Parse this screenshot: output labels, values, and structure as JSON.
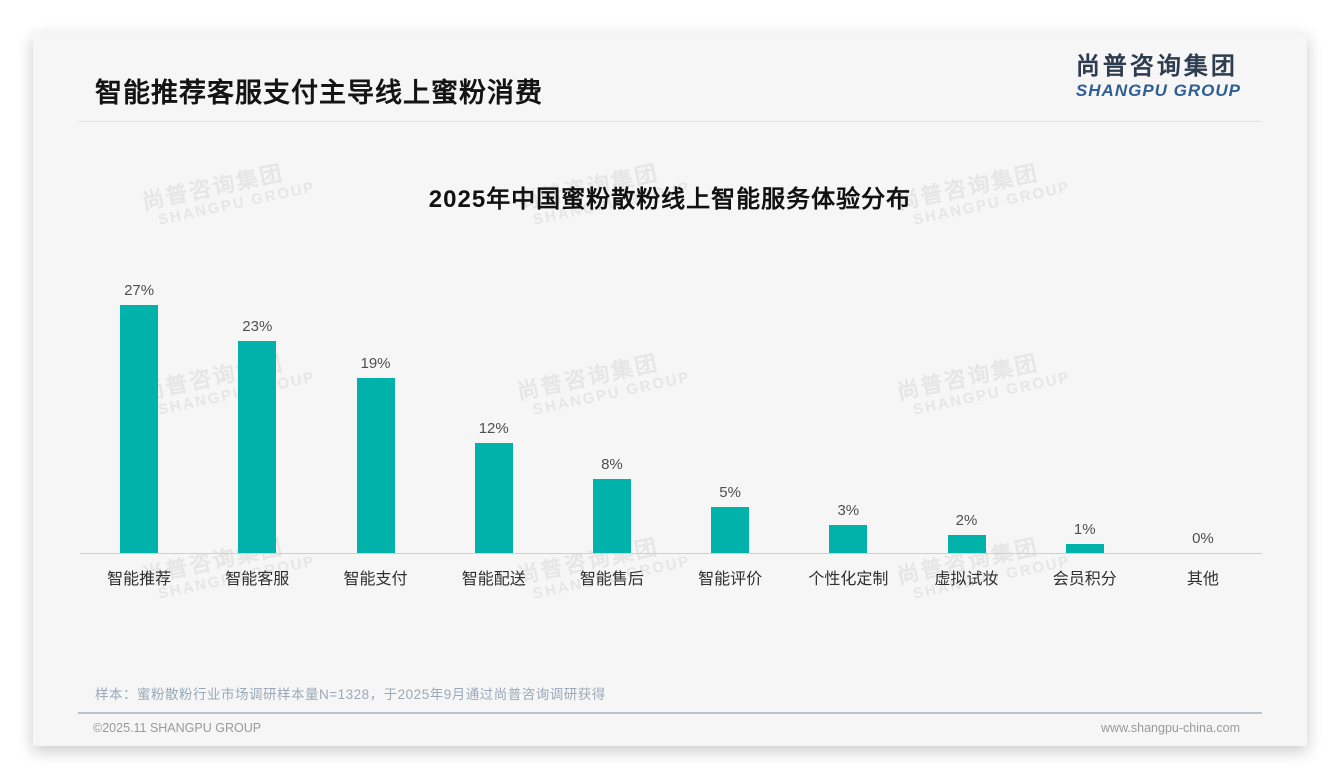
{
  "page": {
    "title": "智能推荐客服支付主导线上蜜粉消费",
    "logo": {
      "cn": "尚普咨询集团",
      "en": "SHANGPU GROUP"
    },
    "watermark": {
      "cn": "尚普咨询集团",
      "en": "SHANGPU GROUP"
    },
    "note": "样本：蜜粉散粉行业市场调研样本量N=1328，于2025年9月通过尚普咨询调研获得",
    "footer_left": "©2025.11 SHANGPU GROUP",
    "footer_right": "www.shangpu-china.com"
  },
  "colors": {
    "bar": "#00b2aa",
    "logo_blue": "#2e5e93",
    "footer_divider": "#b7c3cf",
    "card_bg": "#f6f6f7"
  },
  "chart_data": {
    "type": "bar",
    "title": "2025年中国蜜粉散粉线上智能服务体验分布",
    "categories": [
      "智能推荐",
      "智能客服",
      "智能支付",
      "智能配送",
      "智能售后",
      "智能评价",
      "个性化定制",
      "虚拟试妆",
      "会员积分",
      "其他"
    ],
    "values": [
      27,
      23,
      19,
      12,
      8,
      5,
      3,
      2,
      1,
      0
    ],
    "value_labels": [
      "27%",
      "23%",
      "19%",
      "12%",
      "8%",
      "5%",
      "3%",
      "2%",
      "1%",
      "0%"
    ],
    "unit": "%",
    "xlabel": "",
    "ylabel": "",
    "ylim": [
      0,
      28
    ],
    "grid": false,
    "legend": false,
    "bar_color": "#00b2aa"
  }
}
